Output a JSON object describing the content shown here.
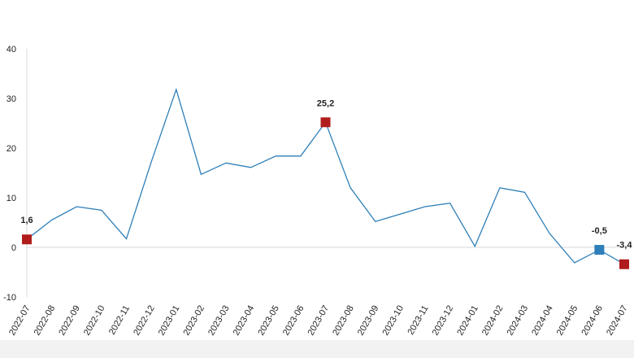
{
  "chart_data": {
    "type": "line",
    "title": "",
    "xlabel": "",
    "ylabel": "",
    "ylim": [
      -10,
      40
    ],
    "yticks": [
      -10,
      0,
      10,
      20,
      30,
      40
    ],
    "grid": false,
    "legend": "none",
    "categories": [
      "2022-07",
      "2022-08",
      "2022-09",
      "2022-10",
      "2022-11",
      "2022-12",
      "2023-01",
      "2023-02",
      "2023-03",
      "2023-04",
      "2023-05",
      "2023-06",
      "2023-07",
      "2023-08",
      "2023-09",
      "2023-10",
      "2023-11",
      "2023-12",
      "2024-01",
      "2024-02",
      "2024-03",
      "2024-04",
      "2024-05",
      "2024-06",
      "2024-07"
    ],
    "series": [
      {
        "color": "#2e7fb8",
        "values": [
          1.6,
          5.5,
          8.2,
          7.5,
          1.7,
          17.2,
          31.8,
          14.7,
          17.0,
          16.1,
          18.4,
          18.4,
          25.2,
          12.0,
          5.2,
          6.7,
          8.2,
          8.9,
          0.2,
          12.0,
          11.1,
          2.8,
          -3.1,
          -0.5,
          -3.4
        ]
      }
    ],
    "highlights": [
      {
        "index": 0,
        "label": "1,6",
        "color": "#b01c1c"
      },
      {
        "index": 12,
        "label": "25,2",
        "color": "#b01c1c"
      },
      {
        "index": 23,
        "label": "-0,5",
        "color": "#2e7fb8"
      },
      {
        "index": 24,
        "label": "-3,4",
        "color": "#b01c1c"
      }
    ],
    "colors": {
      "line": "#2e7fb8",
      "axis": "#d9d9d9",
      "text": "#222222"
    }
  }
}
